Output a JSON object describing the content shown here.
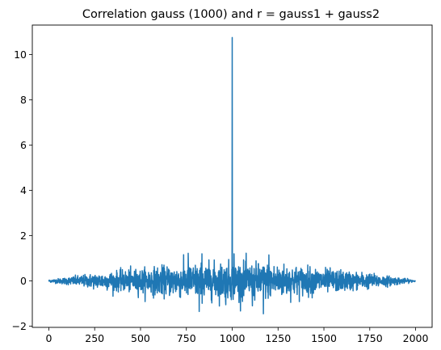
{
  "chart_data": {
    "type": "line",
    "title": "Correlation gauss (1000) and r = gauss1 + gauss2",
    "xlabel": "",
    "ylabel": "",
    "xlim": [
      -90,
      2090
    ],
    "ylim": [
      -2.05,
      11.3
    ],
    "xticks": [
      0,
      250,
      500,
      750,
      1000,
      1250,
      1500,
      1750,
      2000
    ],
    "yticks": [
      -2,
      0,
      2,
      4,
      6,
      8,
      10
    ],
    "grid": false,
    "legend": "none",
    "series": [
      {
        "color": "#1f77b4",
        "x_range": [
          0,
          2000
        ],
        "n_points": 2001,
        "peak": {
          "x": 1000,
          "y": 10.75
        },
        "envelope_amplitude": [
          {
            "x": 0,
            "amp": 0.06
          },
          {
            "x": 100,
            "amp": 0.2
          },
          {
            "x": 250,
            "amp": 0.4
          },
          {
            "x": 500,
            "amp": 0.65
          },
          {
            "x": 750,
            "amp": 0.9
          },
          {
            "x": 1000,
            "amp": 1.0
          },
          {
            "x": 1250,
            "amp": 0.9
          },
          {
            "x": 1500,
            "amp": 0.65
          },
          {
            "x": 1750,
            "amp": 0.4
          },
          {
            "x": 1900,
            "amp": 0.2
          },
          {
            "x": 2000,
            "amp": 0.03
          }
        ],
        "observed_extremes": [
          {
            "x": 760,
            "y": 1.22
          },
          {
            "x": 835,
            "y": 1.2
          },
          {
            "x": 1010,
            "y": 1.2
          },
          {
            "x": 1200,
            "y": 1.15
          },
          {
            "x": 820,
            "y": -1.35
          },
          {
            "x": 1170,
            "y": -1.45
          },
          {
            "x": 1110,
            "y": -1.1
          },
          {
            "x": 965,
            "y": -1.05
          }
        ]
      }
    ]
  }
}
